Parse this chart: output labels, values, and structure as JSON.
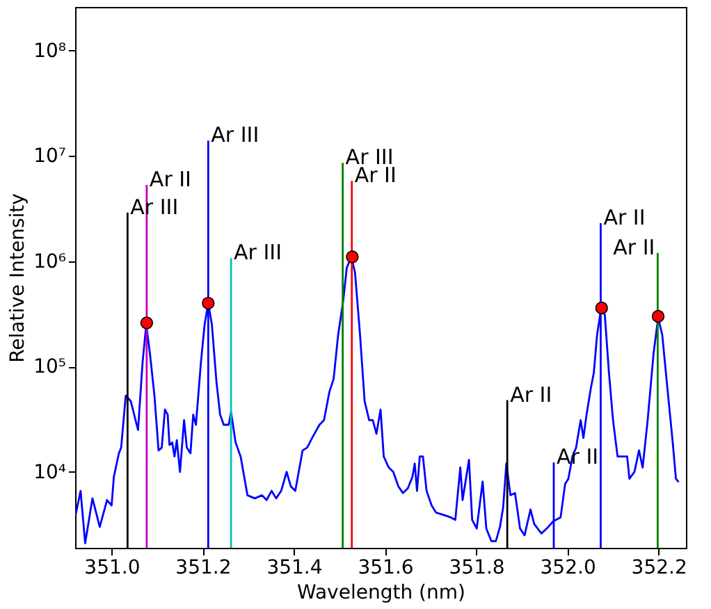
{
  "chart_data": {
    "type": "line",
    "xlabel": "Wavelength (nm)",
    "ylabel": "Relative Intensity",
    "log": "y",
    "grid": false,
    "xlim": [
      350.92,
      352.26
    ],
    "ylim": [
      1900,
      260000000
    ],
    "xticks": [
      {
        "value": 351.0,
        "label": "351.0"
      },
      351.2,
      351.4,
      351.6,
      351.8,
      {
        "value": 352.0,
        "label": "352.0"
      },
      352.2
    ],
    "yticks": [
      {
        "value": 10000,
        "label": "10⁴"
      },
      {
        "value": 100000,
        "label": "10⁵"
      },
      {
        "value": 1000000,
        "label": "10⁶"
      },
      {
        "value": 10000000,
        "label": "10⁷"
      },
      {
        "value": 100000000,
        "label": "10⁸"
      }
    ],
    "series": [
      {
        "color": "#0000ff",
        "marker": "none",
        "x": [
          350.921,
          350.932,
          350.942,
          350.958,
          350.974,
          350.99,
          351.0,
          351.005,
          351.016,
          351.021,
          351.031,
          351.042,
          351.058,
          351.068,
          351.076,
          351.084,
          351.094,
          351.103,
          351.11,
          351.117,
          351.123,
          351.127,
          351.133,
          351.138,
          351.143,
          351.15,
          351.159,
          351.165,
          351.173,
          351.179,
          351.185,
          351.196,
          351.204,
          351.212,
          351.22,
          351.23,
          351.238,
          351.246,
          351.257,
          351.262,
          351.272,
          351.283,
          351.298,
          351.314,
          351.33,
          351.34,
          351.351,
          351.361,
          351.372,
          351.384,
          351.393,
          351.403,
          351.419,
          351.429,
          351.44,
          351.456,
          351.466,
          351.478,
          351.487,
          351.497,
          351.508,
          351.516,
          351.526,
          351.534,
          351.545,
          351.555,
          351.565,
          351.573,
          351.581,
          351.59,
          351.597,
          351.608,
          351.618,
          351.629,
          351.639,
          351.65,
          351.66,
          351.665,
          351.67,
          351.676,
          351.683,
          351.691,
          351.702,
          351.712,
          351.728,
          351.744,
          351.754,
          351.765,
          351.77,
          351.784,
          351.791,
          351.801,
          351.814,
          351.822,
          351.833,
          351.843,
          351.852,
          351.859,
          351.866,
          351.875,
          351.885,
          351.896,
          351.906,
          351.919,
          351.927,
          351.943,
          351.958,
          351.969,
          351.985,
          351.995,
          352.002,
          352.011,
          352.019,
          352.029,
          352.035,
          352.042,
          352.051,
          352.058,
          352.065,
          352.074,
          352.082,
          352.091,
          352.1,
          352.11,
          352.121,
          352.131,
          352.136,
          352.147,
          352.157,
          352.165,
          352.176,
          352.189,
          352.199,
          352.208,
          352.22,
          352.231,
          352.238,
          352.244
        ],
        "values": [
          3900,
          6600,
          2100,
          5600,
          3000,
          5400,
          4800,
          9000,
          15000,
          17000,
          53000,
          47000,
          25000,
          110000,
          250000,
          134000,
          53000,
          16000,
          17000,
          39000,
          35000,
          18000,
          19000,
          14000,
          20000,
          10000,
          31000,
          17000,
          15000,
          35000,
          28000,
          110000,
          250000,
          400000,
          250000,
          72000,
          35000,
          28000,
          28000,
          37000,
          19000,
          14000,
          6000,
          5600,
          6000,
          5400,
          6600,
          5600,
          6600,
          10000,
          7300,
          6600,
          16000,
          17000,
          21000,
          28000,
          31000,
          58000,
          76000,
          200000,
          420000,
          870000,
          1100000,
          780000,
          200000,
          47000,
          31000,
          31000,
          23000,
          39000,
          14000,
          11000,
          10000,
          7300,
          6300,
          7000,
          9000,
          12000,
          6600,
          14000,
          14000,
          6600,
          4800,
          4100,
          3900,
          3700,
          3500,
          11000,
          5400,
          13000,
          3500,
          2900,
          8100,
          2900,
          2200,
          2200,
          3000,
          4600,
          12000,
          6000,
          6300,
          2900,
          2500,
          4400,
          3200,
          2600,
          3000,
          3400,
          3700,
          7700,
          8600,
          14000,
          17000,
          31000,
          21000,
          35000,
          61000,
          88000,
          200000,
          360000,
          310000,
          88000,
          31000,
          14000,
          14000,
          14000,
          8600,
          10000,
          16000,
          11000,
          31000,
          134000,
          290000,
          200000,
          58000,
          19000,
          8600,
          8000
        ]
      },
      {
        "type": "line",
        "color": "#000000",
        "marker": "none",
        "x": [
          351.035,
          351.035
        ],
        "values": [
          1900,
          2900000
        ]
      },
      {
        "type": "line",
        "color": "#bf00bf",
        "marker": "none",
        "x": [
          351.077,
          351.077
        ],
        "values": [
          1900,
          5300000
        ]
      },
      {
        "type": "line",
        "color": "#0000ff",
        "marker": "none",
        "x": [
          351.212,
          351.212
        ],
        "values": [
          1900,
          14000000
        ]
      },
      {
        "type": "line",
        "color": "#00bfbf",
        "marker": "none",
        "x": [
          351.262,
          351.262
        ],
        "values": [
          1900,
          1070000
        ]
      },
      {
        "type": "line",
        "color": "#008000",
        "marker": "none",
        "x": [
          351.507,
          351.507
        ],
        "values": [
          1900,
          8600000
        ]
      },
      {
        "type": "line",
        "color": "#ff0000",
        "marker": "none",
        "x": [
          351.527,
          351.527
        ],
        "values": [
          1900,
          5800000
        ]
      },
      {
        "type": "line",
        "color": "#000000",
        "marker": "none",
        "x": [
          351.868,
          351.868
        ],
        "values": [
          1900,
          48000
        ]
      },
      {
        "type": "line",
        "color": "#0000ff",
        "marker": "none",
        "x": [
          351.97,
          351.97
        ],
        "values": [
          1900,
          12300
        ]
      },
      {
        "type": "line",
        "color": "#0000ff",
        "marker": "none",
        "x": [
          352.073,
          352.073
        ],
        "values": [
          1900,
          2300000
        ]
      },
      {
        "type": "line",
        "color": "#008000",
        "marker": "none",
        "x": [
          352.198,
          352.198
        ],
        "values": [
          1900,
          1200000
        ]
      },
      {
        "type": "scatter",
        "color": "#ff0000",
        "marker": "circle",
        "x": [
          351.077,
          351.212,
          351.528,
          352.075,
          352.199
        ],
        "values": [
          260000,
          400000,
          1100000,
          360000,
          300000
        ]
      }
    ],
    "annotations": [
      {
        "text": "Ar III",
        "x": 351.035,
        "y": 2900000
      },
      {
        "text": "Ar II",
        "x": 351.077,
        "y": 5300000
      },
      {
        "text": "Ar III",
        "x": 351.212,
        "y": 14000000
      },
      {
        "text": "Ar III",
        "x": 351.262,
        "y": 1070000
      },
      {
        "text": "Ar III",
        "x": 351.507,
        "y": 8600000
      },
      {
        "text": "Ar II",
        "x": 351.527,
        "y": 5800000
      },
      {
        "text": "Ar II",
        "x": 351.868,
        "y": 48000
      },
      {
        "text": "Ar II",
        "x": 351.97,
        "y": 12300
      },
      {
        "text": "Ar II",
        "x": 352.073,
        "y": 2300000
      },
      {
        "text": "Ar II",
        "x": 352.198,
        "y": 1200000
      }
    ]
  }
}
